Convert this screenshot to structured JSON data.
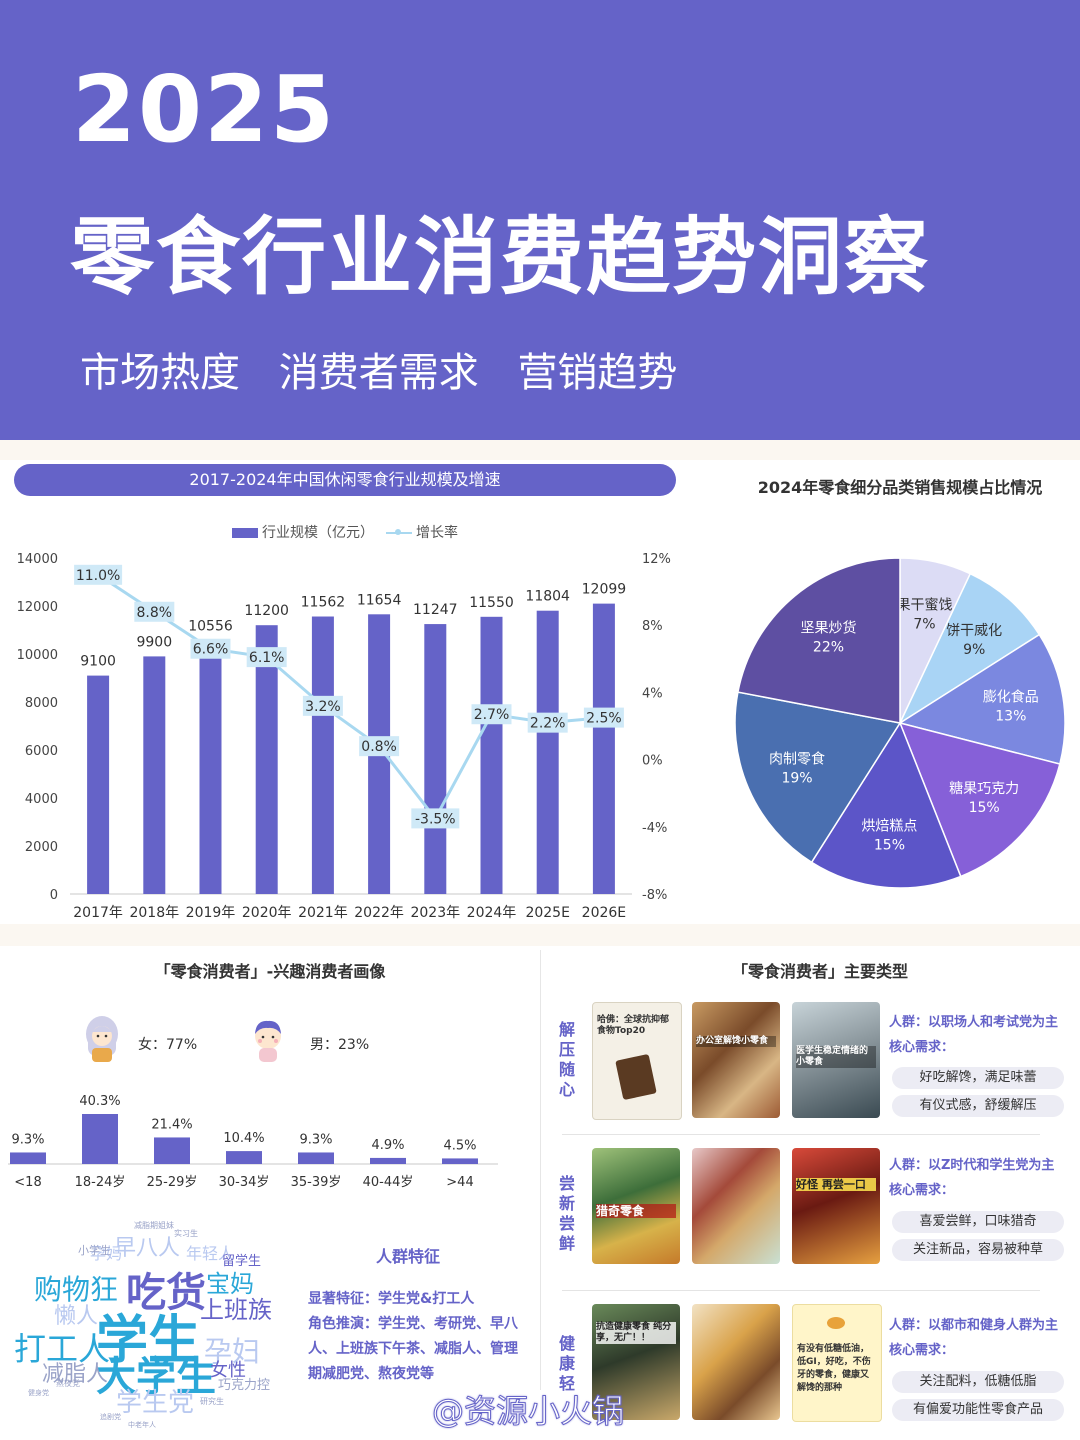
{
  "header": {
    "year": "2025",
    "title": "零食行业消费趋势洞察",
    "subtitles": [
      "市场热度",
      "消费者需求",
      "营销趋势"
    ]
  },
  "market_chart": {
    "title": "2017-2024年中国休闲零食行业规模及增速",
    "legend_bar": "行业规模（亿元）",
    "legend_line": "增长率"
  },
  "pie_title": "2024年零食细分品类销售规模占比情况",
  "consumer_profile": {
    "title": "「零食消费者」-兴趣消费者画像",
    "female": "女：77%",
    "male": "男：23%"
  },
  "word_cloud": [
    {
      "text": "学生",
      "size": 52,
      "color": "#2aa7d8"
    },
    {
      "text": "吃货",
      "size": 40,
      "color": "#6563c8"
    },
    {
      "text": "大学生",
      "size": 40,
      "color": "#2aa7d8"
    },
    {
      "text": "打工人",
      "size": 32,
      "color": "#2aa7d8"
    },
    {
      "text": "购物狂",
      "size": 28,
      "color": "#2aa7d8"
    },
    {
      "text": "孕妇",
      "size": 28,
      "color": "#b9c9f0"
    },
    {
      "text": "上班族",
      "size": 24,
      "color": "#6563c8"
    },
    {
      "text": "宝妈",
      "size": 24,
      "color": "#2aa7d8"
    },
    {
      "text": "减脂人",
      "size": 22,
      "color": "#9aa3c8"
    },
    {
      "text": "懒人",
      "size": 22,
      "color": "#b9c9f0"
    },
    {
      "text": "早八人",
      "size": 22,
      "color": "#b9c9f0"
    },
    {
      "text": "学生党",
      "size": 26,
      "color": "#b9c9f0"
    },
    {
      "text": "女性",
      "size": 18,
      "color": "#6563c8"
    },
    {
      "text": "年轻人",
      "size": 16,
      "color": "#b9c9f0"
    },
    {
      "text": "孕妈",
      "size": 16,
      "color": "#b9c9f0"
    },
    {
      "text": "留学生",
      "size": 13,
      "color": "#6563c8"
    },
    {
      "text": "巧克力控",
      "size": 13,
      "color": "#9aa3c8"
    },
    {
      "text": "小学生",
      "size": 11,
      "color": "#9aa3c8"
    },
    {
      "text": "减脂期姐妹",
      "size": 8,
      "color": "#9aa3c8"
    },
    {
      "text": "实习生",
      "size": 8,
      "color": "#9aa3c8"
    },
    {
      "text": "熬夜党",
      "size": 8,
      "color": "#9aa3c8"
    },
    {
      "text": "研究生",
      "size": 8,
      "color": "#9aa3c8"
    },
    {
      "text": "中老年人",
      "size": 7,
      "color": "#9aa3c8"
    },
    {
      "text": "健身党",
      "size": 7,
      "color": "#9aa3c8"
    },
    {
      "text": "追剧党",
      "size": 7,
      "color": "#9aa3c8"
    }
  ],
  "traits": {
    "title": "人群特征",
    "lines": [
      "显著特征：学生党&打工人",
      "角色推演：学生党、考研党、早八",
      "人、上班族下午茶、减脂人、管理",
      "期减肥党、熬夜党等"
    ]
  },
  "types": {
    "title": "「零食消费者」主要类型",
    "rows": [
      {
        "label": "解压随心",
        "thumbs": [
          "哈佛：全球抗抑郁食物Top20",
          "办公室解馋小零食",
          "医学生稳定情绪的小零食"
        ],
        "crowd": "人群：以职场人和考试党为主",
        "need_label": "核心需求：",
        "needs": [
          "好吃解馋，满足味蕾",
          "有仪式感，舒缓解压"
        ]
      },
      {
        "label": "尝新尝鲜",
        "thumbs": [
          "猎奇零食",
          "",
          "好怪 再尝一口"
        ],
        "crowd": "人群：以Z时代和学生党为主",
        "need_label": "核心需求：",
        "needs": [
          "喜爱尝鲜，口味猎奇",
          "关注新品，容易被种草"
        ]
      },
      {
        "label": "健康轻",
        "thumbs": [
          "抗造健康零食 纯分享，无广！！",
          "",
          "有没有低糖低油，低GI，好吃，不伤牙的零食，健康又解馋的那种"
        ],
        "crowd": "人群：以都市和健身人群为主",
        "need_label": "核心需求：",
        "needs": [
          "关注配料，低糖低脂",
          "有偏爱功能性零食产品"
        ]
      }
    ]
  },
  "watermark": "@资源小火锅",
  "chart_data": [
    {
      "type": "bar",
      "title": "2017-2024年中国休闲零食行业规模及增速",
      "categories": [
        "2017年",
        "2018年",
        "2019年",
        "2020年",
        "2021年",
        "2022年",
        "2023年",
        "2024年",
        "2025E",
        "2026E"
      ],
      "series": [
        {
          "name": "行业规模（亿元）",
          "type": "bar",
          "axis": "left",
          "values": [
            9100,
            9900,
            10556,
            11200,
            11562,
            11654,
            11247,
            11550,
            11804,
            12099
          ]
        },
        {
          "name": "增长率",
          "type": "line",
          "axis": "right",
          "values": [
            11.0,
            8.8,
            6.6,
            6.1,
            3.2,
            0.8,
            -3.5,
            2.7,
            2.2,
            2.5
          ]
        }
      ],
      "ylim": [
        0,
        14000
      ],
      "yticks": [
        0,
        2000,
        4000,
        6000,
        8000,
        10000,
        12000,
        14000
      ],
      "y2lim": [
        -8,
        12
      ],
      "y2ticks": [
        "-8%",
        "-4%",
        "0%",
        "4%",
        "8%",
        "12%"
      ],
      "legend": "top-center",
      "colors": {
        "bar": "#6563c8",
        "line": "#a8d8f0"
      }
    },
    {
      "type": "pie",
      "title": "2024年零食细分品类销售规模占比情况",
      "slices": [
        {
          "label": "果干蜜饯",
          "value": 7,
          "color": "#dcdcf5"
        },
        {
          "label": "饼干威化",
          "value": 9,
          "color": "#a9d4f5"
        },
        {
          "label": "膨化食品",
          "value": 13,
          "color": "#7b88e0"
        },
        {
          "label": "糖果巧克力",
          "value": 15,
          "color": "#8660d8"
        },
        {
          "label": "烘焙糕点",
          "value": 15,
          "color": "#5c55c8"
        },
        {
          "label": "肉制零食",
          "value": 19,
          "color": "#4a6fb0"
        },
        {
          "label": "坚果炒货",
          "value": 22,
          "color": "#5e4fa2"
        }
      ]
    },
    {
      "type": "bar",
      "title": "",
      "categories": [
        "<18",
        "18-24岁",
        "25-29岁",
        "30-34岁",
        "35-39岁",
        "40-44岁",
        ">44"
      ],
      "values": [
        9.3,
        40.3,
        21.4,
        10.4,
        9.3,
        4.9,
        4.5
      ],
      "labels": [
        "9.3%",
        "40.3%",
        "21.4%",
        "10.4%",
        "9.3%",
        "4.9%",
        "4.5%"
      ],
      "colors": {
        "bar": "#6563c8"
      }
    }
  ]
}
